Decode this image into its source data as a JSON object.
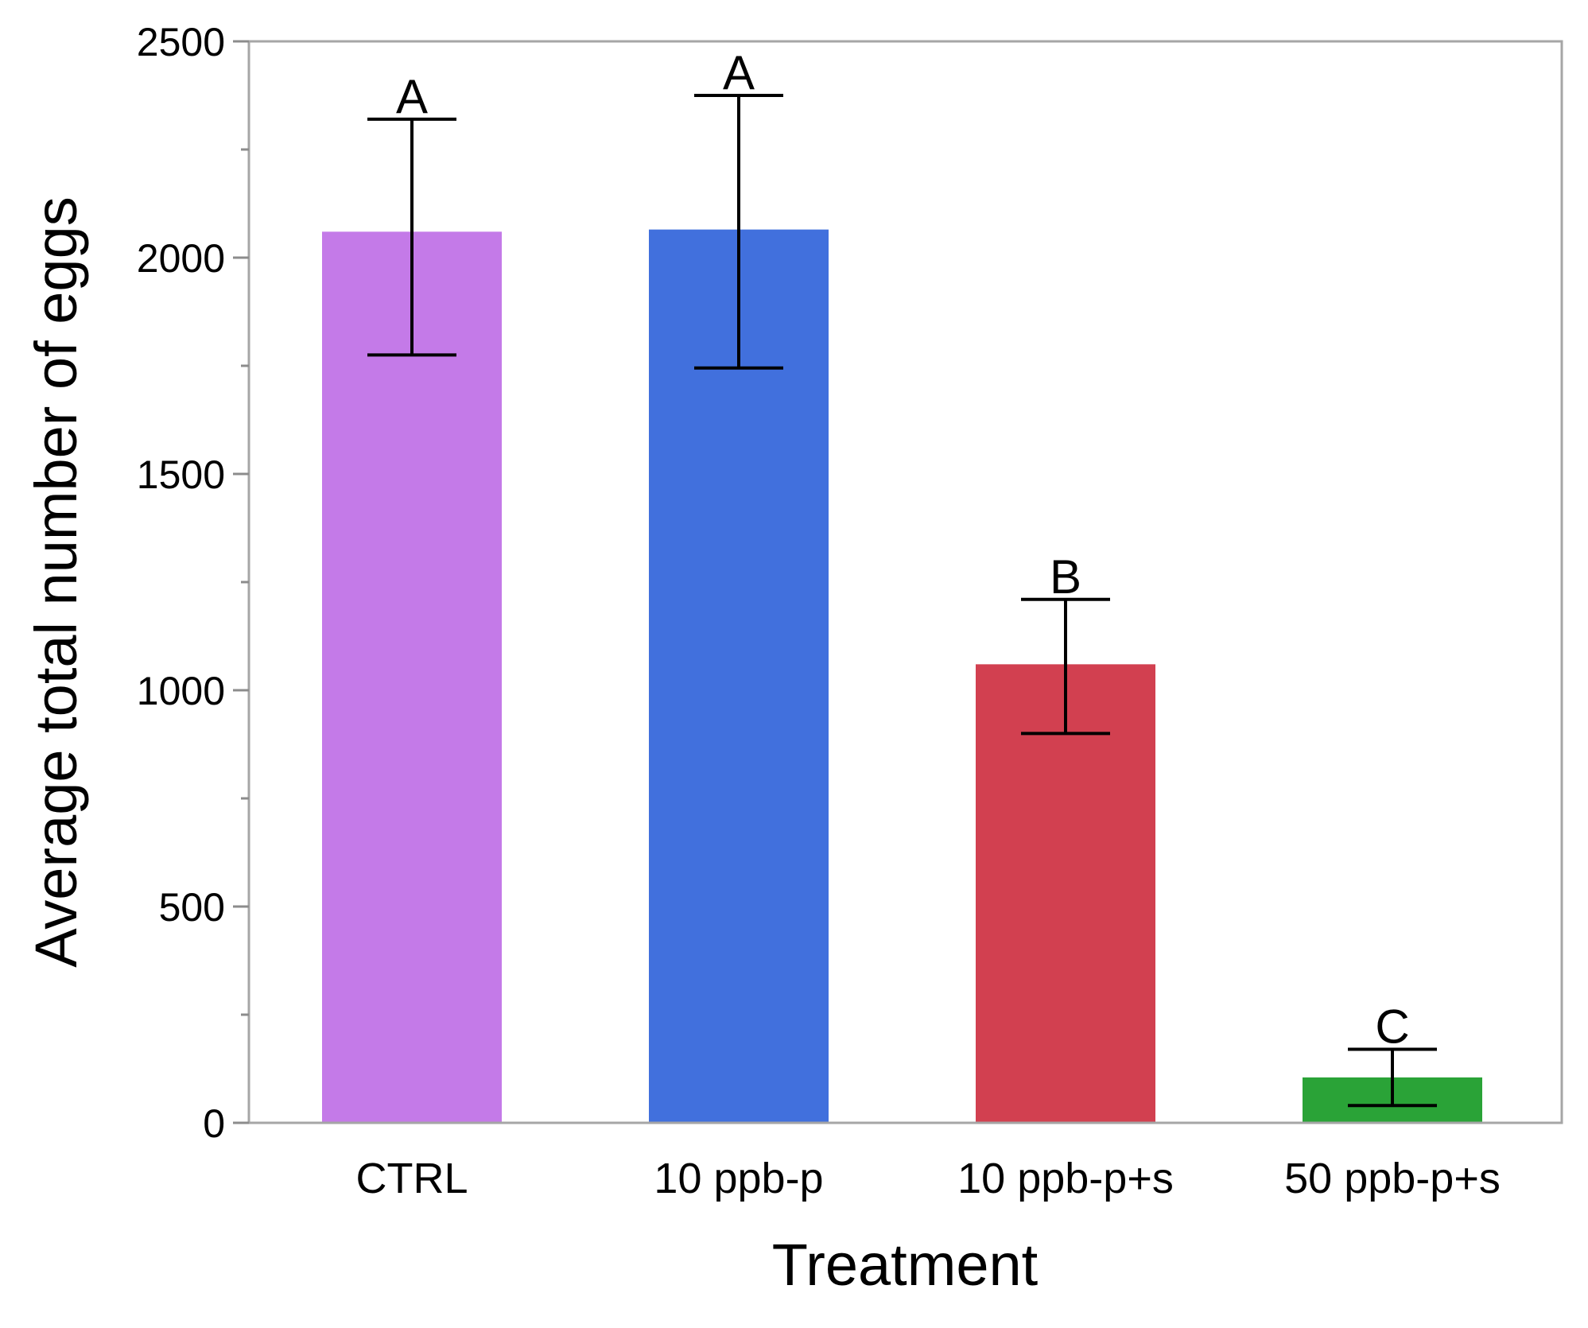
{
  "chart_data": {
    "type": "bar",
    "title": "",
    "xlabel": "Treatment",
    "ylabel": "Average total number of eggs",
    "categories": [
      "CTRL",
      "10 ppb-p",
      "10 ppb-p+s",
      "50 ppb-p+s"
    ],
    "values": [
      2060,
      2065,
      1060,
      105
    ],
    "error_upper": [
      2320,
      2375,
      1210,
      170
    ],
    "error_lower": [
      1775,
      1745,
      900,
      40
    ],
    "significance": [
      "A",
      "A",
      "B",
      "C"
    ],
    "colors": [
      "#c47ae8",
      "#4170dd",
      "#d24050",
      "#2aa337"
    ],
    "ylim": [
      0,
      2500
    ],
    "major_ticks": [
      0,
      500,
      1000,
      1500,
      2000,
      2500
    ],
    "major_tick_labels": [
      "0",
      "500",
      "1000",
      "1500",
      "2000",
      "2500"
    ],
    "minor_ticks": [
      250,
      750,
      1250,
      1750,
      2250
    ],
    "grid": false,
    "legend": "none"
  }
}
